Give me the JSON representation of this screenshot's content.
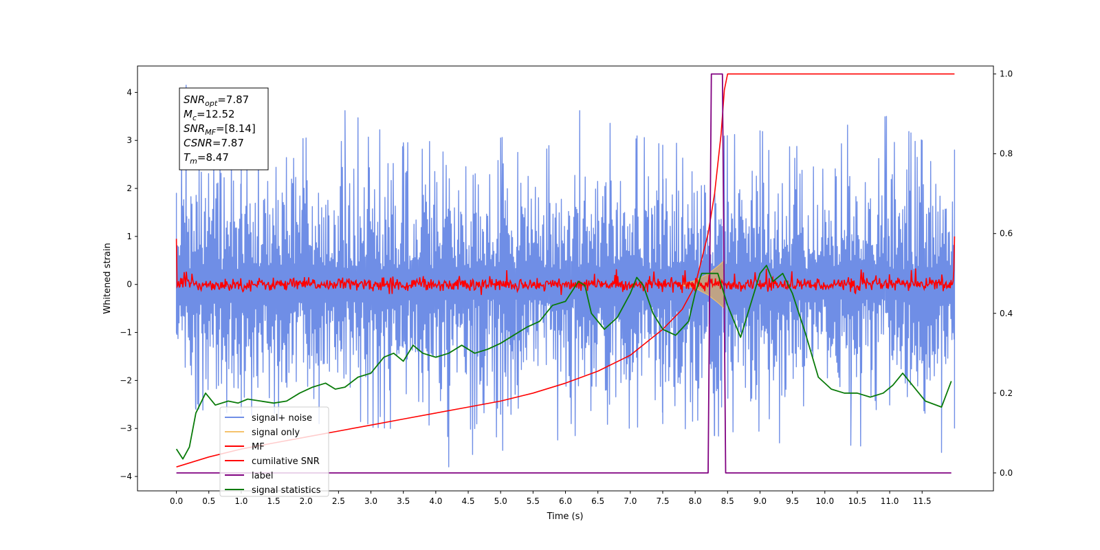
{
  "chart_data": {
    "type": "line",
    "xlabel": "Time (s)",
    "ylabel": "Whitened strain",
    "xlim": [
      -0.6,
      12.6
    ],
    "ylim": [
      -4.3,
      4.55
    ],
    "y2lim": [
      -0.045,
      1.02
    ],
    "x_ticks": [
      0.0,
      0.5,
      1.0,
      1.5,
      2.0,
      2.5,
      3.0,
      3.5,
      4.0,
      4.5,
      5.0,
      5.5,
      6.0,
      6.5,
      7.0,
      7.5,
      8.0,
      8.5,
      9.0,
      9.5,
      10.0,
      10.5,
      11.0,
      11.5
    ],
    "x_tick_labels": [
      "0.0",
      "0.5",
      "1.0",
      "1.5",
      "2.0",
      "2.5",
      "3.0",
      "3.5",
      "4.0",
      "4.5",
      "5.0",
      "5.5",
      "6.0",
      "6.5",
      "7.0",
      "7.5",
      "8.0",
      "8.5",
      "9.0",
      "9.5",
      "10.0",
      "10.5",
      "11.0",
      "11.5"
    ],
    "y_ticks": [
      4,
      3,
      2,
      1,
      0,
      -1,
      -2,
      -3,
      -4
    ],
    "y_tick_labels": [
      "4",
      "3",
      "2",
      "1",
      "0",
      "−1",
      "−2",
      "−3",
      "−4"
    ],
    "y2_ticks": [
      1.0,
      0.8,
      0.6,
      0.4,
      0.2,
      0.0
    ],
    "y2_tick_labels": [
      "1.0",
      "0.8",
      "0.6",
      "0.4",
      "0.2",
      "0.0"
    ],
    "grid": false,
    "legend_position": "lower-left",
    "annotation_lines": [
      {
        "sym": "SNR",
        "sub": "opt",
        "value": "=7.87"
      },
      {
        "sym": "M",
        "sub": "c",
        "value": "=12.52"
      },
      {
        "sym": "SNR",
        "sub": "MF",
        "value": "=[8.14]"
      },
      {
        "sym": "CSNR",
        "sub": "",
        "value": "=7.87"
      },
      {
        "sym": "T",
        "sub": "m",
        "value": "=8.47"
      }
    ],
    "colors": {
      "signal_noise": "#6f8ee6",
      "signal_only": "#f5c26b",
      "signal_only_fill": "#c8a57a",
      "mf": "#ff0000",
      "csnr": "#ff0000",
      "label": "#800080",
      "statistics": "#087a08"
    },
    "series": [
      {
        "name": "signal+ noise",
        "axis": "left",
        "x_range": [
          0.0,
          12.0
        ],
        "envelope_top": [
          [
            0.0,
            1.9
          ],
          [
            0.15,
            4.15
          ],
          [
            0.35,
            2.6
          ],
          [
            1.0,
            2.8
          ],
          [
            2.0,
            3.05
          ],
          [
            2.6,
            3.62
          ],
          [
            3.5,
            2.95
          ],
          [
            5.0,
            3.05
          ],
          [
            6.22,
            3.62
          ],
          [
            7.5,
            2.9
          ],
          [
            9.0,
            3.2
          ],
          [
            10.35,
            3.32
          ],
          [
            10.95,
            3.5
          ],
          [
            11.5,
            3.0
          ],
          [
            12.0,
            2.8
          ]
        ],
        "envelope_bottom": [
          [
            0.0,
            -1.0
          ],
          [
            0.3,
            -2.6
          ],
          [
            1.0,
            -2.7
          ],
          [
            2.2,
            -2.9
          ],
          [
            3.3,
            -3.0
          ],
          [
            4.2,
            -3.8
          ],
          [
            6.15,
            -3.15
          ],
          [
            7.5,
            -2.9
          ],
          [
            8.3,
            -3.15
          ],
          [
            9.3,
            -3.3
          ],
          [
            10.4,
            -3.35
          ],
          [
            11.8,
            -3.5
          ],
          [
            12.0,
            -3.0
          ]
        ],
        "typical_band": [
          -1.45,
          1.45
        ]
      },
      {
        "name": "signal only",
        "axis": "left",
        "x_range": [
          7.8,
          8.45
        ],
        "amplitude": [
          [
            7.8,
            0.02
          ],
          [
            8.0,
            0.08
          ],
          [
            8.2,
            0.22
          ],
          [
            8.35,
            0.38
          ],
          [
            8.45,
            0.5
          ]
        ]
      },
      {
        "name": "MF",
        "axis": "left",
        "x_range": [
          0.0,
          12.0
        ],
        "start_value": 0.95,
        "end_value": 1.0,
        "band": [
          -0.12,
          0.12
        ],
        "spike_max": 0.35,
        "spike_min": -0.22
      },
      {
        "name": "cumilative SNR",
        "axis": "right",
        "x": [
          0.0,
          0.5,
          1.0,
          1.5,
          2.0,
          2.5,
          3.0,
          3.5,
          4.0,
          4.5,
          5.0,
          5.5,
          6.0,
          6.5,
          7.0,
          7.5,
          7.8,
          8.0,
          8.2,
          8.3,
          8.4,
          8.45,
          8.5,
          12.0
        ],
        "y": [
          0.015,
          0.04,
          0.06,
          0.075,
          0.09,
          0.105,
          0.12,
          0.135,
          0.15,
          0.165,
          0.18,
          0.2,
          0.225,
          0.255,
          0.295,
          0.36,
          0.41,
          0.47,
          0.6,
          0.7,
          0.85,
          0.96,
          1.0,
          1.0
        ]
      },
      {
        "name": "label",
        "axis": "right",
        "x": [
          0.0,
          8.2,
          8.25,
          8.42,
          8.47,
          11.95
        ],
        "y": [
          0.0,
          0.0,
          1.0,
          1.0,
          0.0,
          0.0
        ]
      },
      {
        "name": "signal statistics",
        "axis": "right",
        "x": [
          0.0,
          0.1,
          0.2,
          0.3,
          0.45,
          0.6,
          0.8,
          0.95,
          1.1,
          1.3,
          1.5,
          1.7,
          1.9,
          2.1,
          2.3,
          2.45,
          2.6,
          2.8,
          3.0,
          3.2,
          3.35,
          3.5,
          3.65,
          3.8,
          4.0,
          4.2,
          4.4,
          4.6,
          4.8,
          5.0,
          5.2,
          5.4,
          5.6,
          5.8,
          6.0,
          6.2,
          6.3,
          6.4,
          6.6,
          6.8,
          7.0,
          7.1,
          7.2,
          7.35,
          7.5,
          7.7,
          7.9,
          8.0,
          8.1,
          8.2,
          8.35,
          8.5,
          8.7,
          8.85,
          9.0,
          9.1,
          9.2,
          9.35,
          9.5,
          9.7,
          9.9,
          10.1,
          10.3,
          10.5,
          10.7,
          10.9,
          11.05,
          11.2,
          11.35,
          11.55,
          11.8,
          11.95
        ],
        "y": [
          0.06,
          0.035,
          0.065,
          0.15,
          0.2,
          0.17,
          0.18,
          0.175,
          0.185,
          0.18,
          0.175,
          0.18,
          0.2,
          0.215,
          0.225,
          0.21,
          0.215,
          0.24,
          0.25,
          0.29,
          0.3,
          0.28,
          0.32,
          0.3,
          0.29,
          0.3,
          0.32,
          0.3,
          0.31,
          0.325,
          0.345,
          0.365,
          0.38,
          0.42,
          0.43,
          0.48,
          0.47,
          0.4,
          0.36,
          0.39,
          0.45,
          0.49,
          0.47,
          0.4,
          0.36,
          0.345,
          0.38,
          0.45,
          0.5,
          0.5,
          0.5,
          0.42,
          0.34,
          0.42,
          0.5,
          0.52,
          0.48,
          0.5,
          0.45,
          0.35,
          0.24,
          0.21,
          0.2,
          0.2,
          0.19,
          0.2,
          0.22,
          0.25,
          0.22,
          0.18,
          0.165,
          0.23
        ]
      }
    ]
  }
}
